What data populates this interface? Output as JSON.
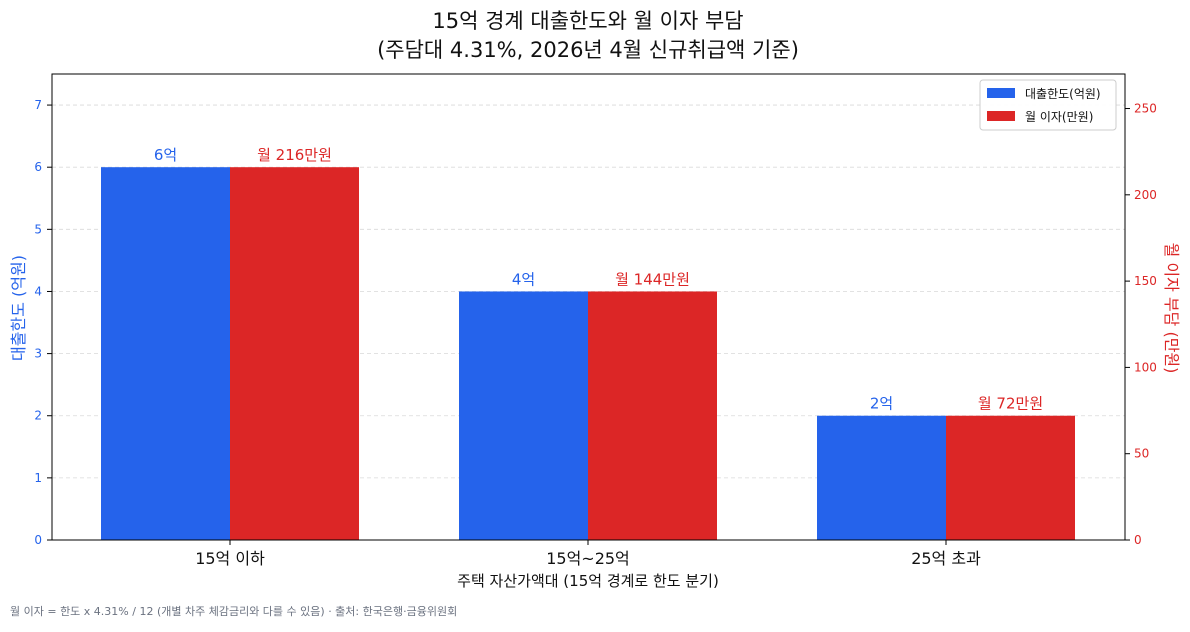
{
  "chart_data": {
    "type": "bar",
    "title": "15억 경계 대출한도와 월 이자 부담",
    "subtitle": "(주담대 4.31%, 2026년 4월 신규취급액 기준)",
    "xlabel": "주택 자산가액대 (15억 경계로 한도 분기)",
    "ylabel_left": "대출한도 (억원)",
    "ylabel_right": "월 이자 부담 (만원)",
    "categories": [
      "15억 이하",
      "15억~25억",
      "25억 초과"
    ],
    "series": [
      {
        "name": "대출한도(억원)",
        "axis": "left",
        "color": "#2563eb",
        "values": [
          6,
          4,
          2
        ],
        "data_labels": [
          "6억",
          "4억",
          "2억"
        ]
      },
      {
        "name": "월 이자(만원)",
        "axis": "right",
        "color": "#dc2626",
        "values": [
          216,
          144,
          72
        ],
        "data_labels": [
          "월 216만원",
          "월 144만원",
          "월 72만원"
        ]
      }
    ],
    "ylim_left": [
      0,
      7.5
    ],
    "yticks_left": [
      "0",
      "1",
      "2",
      "3",
      "4",
      "5",
      "6",
      "7"
    ],
    "ylim_right": [
      0,
      270
    ],
    "yticks_right": [
      "0",
      "50",
      "100",
      "150",
      "200",
      "250"
    ],
    "grid": true,
    "legend_position": "top-right",
    "footnote": "월 이자 = 한도 x 4.31% / 12 (개별 차주 체감금리와 다를 수 있음) · 출처: 한국은행·금융위원회"
  }
}
